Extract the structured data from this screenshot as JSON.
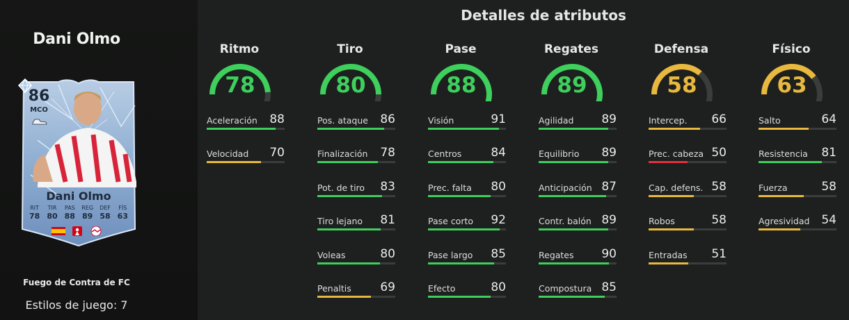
{
  "player": {
    "name": "Dani Olmo",
    "item_type": "Fuego de Contra de FC",
    "playstyles": "Estilos de juego: 7"
  },
  "card": {
    "overall": "86",
    "position": "MCO",
    "name": "Dani Olmo",
    "stats": [
      {
        "label": "RIT",
        "value": "78"
      },
      {
        "label": "TIR",
        "value": "80"
      },
      {
        "label": "PAS",
        "value": "88"
      },
      {
        "label": "REG",
        "value": "89"
      },
      {
        "label": "DEF",
        "value": "58"
      },
      {
        "label": "FÍS",
        "value": "63"
      }
    ],
    "flags": [
      "spain-flag-icon",
      "bundesliga-icon",
      "rb-leipzig-badge-icon"
    ]
  },
  "title": "Detalles de atributos",
  "colors": {
    "green": "#3ecf5c",
    "yellow": "#e8b93e",
    "red": "#e0323c",
    "track": "#3b3d3c",
    "background": "#1e1f1f"
  },
  "categories": [
    {
      "name": "Ritmo",
      "value": 78,
      "color": "green",
      "stats": [
        {
          "label": "Aceleración",
          "value": 88,
          "color": "green"
        },
        {
          "label": "Velocidad",
          "value": 70,
          "color": "yellow"
        }
      ]
    },
    {
      "name": "Tiro",
      "value": 80,
      "color": "green",
      "stats": [
        {
          "label": "Pos. ataque",
          "value": 86,
          "color": "green"
        },
        {
          "label": "Finalización",
          "value": 78,
          "color": "green"
        },
        {
          "label": "Pot. de tiro",
          "value": 83,
          "color": "green"
        },
        {
          "label": "Tiro lejano",
          "value": 81,
          "color": "green"
        },
        {
          "label": "Voleas",
          "value": 80,
          "color": "green"
        },
        {
          "label": "Penaltis",
          "value": 69,
          "color": "yellow"
        }
      ]
    },
    {
      "name": "Pase",
      "value": 88,
      "color": "green",
      "stats": [
        {
          "label": "Visión",
          "value": 91,
          "color": "green"
        },
        {
          "label": "Centros",
          "value": 84,
          "color": "green"
        },
        {
          "label": "Prec. falta",
          "value": 80,
          "color": "green"
        },
        {
          "label": "Pase corto",
          "value": 92,
          "color": "green"
        },
        {
          "label": "Pase largo",
          "value": 85,
          "color": "green"
        },
        {
          "label": "Efecto",
          "value": 80,
          "color": "green"
        }
      ]
    },
    {
      "name": "Regates",
      "value": 89,
      "color": "green",
      "stats": [
        {
          "label": "Agilidad",
          "value": 89,
          "color": "green"
        },
        {
          "label": "Equilibrio",
          "value": 89,
          "color": "green"
        },
        {
          "label": "Anticipación",
          "value": 87,
          "color": "green"
        },
        {
          "label": "Contr. balón",
          "value": 89,
          "color": "green"
        },
        {
          "label": "Regates",
          "value": 90,
          "color": "green"
        },
        {
          "label": "Compostura",
          "value": 85,
          "color": "green"
        }
      ]
    },
    {
      "name": "Defensa",
      "value": 58,
      "color": "yellow",
      "stats": [
        {
          "label": "Intercep.",
          "value": 66,
          "color": "yellow"
        },
        {
          "label": "Prec. cabeza",
          "value": 50,
          "color": "red"
        },
        {
          "label": "Cap. defens.",
          "value": 58,
          "color": "yellow"
        },
        {
          "label": "Robos",
          "value": 58,
          "color": "yellow"
        },
        {
          "label": "Entradas",
          "value": 51,
          "color": "yellow"
        }
      ]
    },
    {
      "name": "Físico",
      "value": 63,
      "color": "yellow",
      "stats": [
        {
          "label": "Salto",
          "value": 64,
          "color": "yellow"
        },
        {
          "label": "Resistencia",
          "value": 81,
          "color": "green"
        },
        {
          "label": "Fuerza",
          "value": 58,
          "color": "yellow"
        },
        {
          "label": "Agresividad",
          "value": 54,
          "color": "yellow"
        }
      ]
    }
  ]
}
